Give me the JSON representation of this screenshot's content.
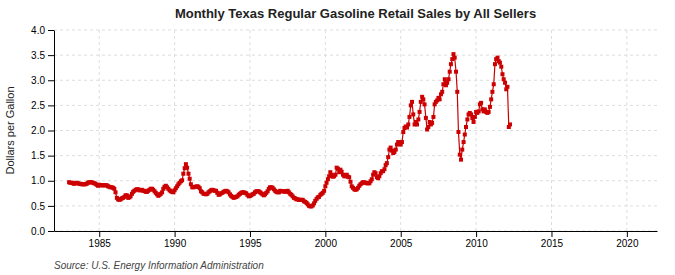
{
  "chart_data": {
    "type": "line",
    "title": "Monthly Texas Regular Gasoline Retail Sales by All Sellers",
    "y_label": "Dollars per Gallon",
    "annotations": [
      "Source: U.S. Energy Information Administration"
    ],
    "color": "#cc0000",
    "marker": "square",
    "grid": true,
    "xlim": [
      1982,
      2022
    ],
    "ylim": [
      0.0,
      4.0
    ],
    "xticks": [
      1985,
      1990,
      1995,
      2000,
      2005,
      2010,
      2015,
      2020
    ],
    "yticks": [
      {
        "value": 0.0,
        "label": "0.0"
      },
      0.5,
      {
        "value": 1.0,
        "label": "1.0"
      },
      1.5,
      {
        "value": 2.0,
        "label": "2.0"
      },
      2.5,
      {
        "value": 3.0,
        "label": "3.0"
      },
      3.5,
      {
        "value": 4.0,
        "label": "4.0"
      }
    ],
    "x": [
      1983.0,
      1983.08,
      1983.17,
      1983.25,
      1983.33,
      1983.42,
      1983.5,
      1983.58,
      1983.67,
      1983.75,
      1983.83,
      1983.92,
      1984.0,
      1984.08,
      1984.17,
      1984.25,
      1984.33,
      1984.42,
      1984.5,
      1984.58,
      1984.67,
      1984.75,
      1984.83,
      1984.92,
      1985.0,
      1985.08,
      1985.17,
      1985.25,
      1985.33,
      1985.42,
      1985.5,
      1985.58,
      1985.67,
      1985.75,
      1985.83,
      1985.92,
      1986.0,
      1986.08,
      1986.17,
      1986.25,
      1986.33,
      1986.42,
      1986.5,
      1986.58,
      1986.67,
      1986.75,
      1986.83,
      1986.92,
      1987.0,
      1987.08,
      1987.17,
      1987.25,
      1987.33,
      1987.42,
      1987.5,
      1987.58,
      1987.67,
      1987.75,
      1987.83,
      1987.92,
      1988.0,
      1988.08,
      1988.17,
      1988.25,
      1988.33,
      1988.42,
      1988.5,
      1988.58,
      1988.67,
      1988.75,
      1988.83,
      1988.92,
      1989.0,
      1989.08,
      1989.17,
      1989.25,
      1989.33,
      1989.42,
      1989.5,
      1989.58,
      1989.67,
      1989.75,
      1989.83,
      1989.92,
      1990.0,
      1990.08,
      1990.17,
      1990.25,
      1990.33,
      1990.42,
      1990.5,
      1990.58,
      1990.67,
      1990.75,
      1990.83,
      1990.92,
      1991.0,
      1991.08,
      1991.17,
      1991.25,
      1991.33,
      1991.42,
      1991.5,
      1991.58,
      1991.67,
      1991.75,
      1991.83,
      1991.92,
      1992.0,
      1992.08,
      1992.17,
      1992.25,
      1992.33,
      1992.42,
      1992.5,
      1992.58,
      1992.67,
      1992.75,
      1992.83,
      1992.92,
      1993.0,
      1993.08,
      1993.17,
      1993.25,
      1993.33,
      1993.42,
      1993.5,
      1993.58,
      1993.67,
      1993.75,
      1993.83,
      1993.92,
      1994.0,
      1994.08,
      1994.17,
      1994.25,
      1994.33,
      1994.42,
      1994.5,
      1994.58,
      1994.67,
      1994.75,
      1994.83,
      1994.92,
      1995.0,
      1995.08,
      1995.17,
      1995.25,
      1995.33,
      1995.42,
      1995.5,
      1995.58,
      1995.67,
      1995.75,
      1995.83,
      1995.92,
      1996.0,
      1996.08,
      1996.17,
      1996.25,
      1996.33,
      1996.42,
      1996.5,
      1996.58,
      1996.67,
      1996.75,
      1996.83,
      1996.92,
      1997.0,
      1997.08,
      1997.17,
      1997.25,
      1997.33,
      1997.42,
      1997.5,
      1997.58,
      1997.67,
      1997.75,
      1997.83,
      1997.92,
      1998.0,
      1998.08,
      1998.17,
      1998.25,
      1998.33,
      1998.42,
      1998.5,
      1998.58,
      1998.67,
      1998.75,
      1998.83,
      1998.92,
      1999.0,
      1999.08,
      1999.17,
      1999.25,
      1999.33,
      1999.42,
      1999.5,
      1999.58,
      1999.67,
      1999.75,
      1999.83,
      1999.92,
      2000.0,
      2000.08,
      2000.17,
      2000.25,
      2000.33,
      2000.42,
      2000.5,
      2000.58,
      2000.67,
      2000.75,
      2000.83,
      2000.92,
      2001.0,
      2001.08,
      2001.17,
      2001.25,
      2001.33,
      2001.42,
      2001.5,
      2001.58,
      2001.67,
      2001.75,
      2001.83,
      2001.92,
      2002.0,
      2002.08,
      2002.17,
      2002.25,
      2002.33,
      2002.42,
      2002.5,
      2002.58,
      2002.67,
      2002.75,
      2002.83,
      2002.92,
      2003.0,
      2003.08,
      2003.17,
      2003.25,
      2003.33,
      2003.42,
      2003.5,
      2003.58,
      2003.67,
      2003.75,
      2003.83,
      2003.92,
      2004.0,
      2004.08,
      2004.17,
      2004.25,
      2004.33,
      2004.42,
      2004.5,
      2004.58,
      2004.67,
      2004.75,
      2004.83,
      2004.92,
      2005.0,
      2005.08,
      2005.17,
      2005.25,
      2005.33,
      2005.42,
      2005.5,
      2005.58,
      2005.67,
      2005.75,
      2005.83,
      2005.92,
      2006.0,
      2006.08,
      2006.17,
      2006.25,
      2006.33,
      2006.42,
      2006.5,
      2006.58,
      2006.67,
      2006.75,
      2006.83,
      2006.92,
      2007.0,
      2007.08,
      2007.17,
      2007.25,
      2007.33,
      2007.42,
      2007.5,
      2007.58,
      2007.67,
      2007.75,
      2007.83,
      2007.92,
      2008.0,
      2008.08,
      2008.17,
      2008.25,
      2008.33,
      2008.42,
      2008.5,
      2008.58,
      2008.67,
      2008.75,
      2008.83,
      2008.92,
      2009.0,
      2009.08,
      2009.17,
      2009.25,
      2009.33,
      2009.42,
      2009.5,
      2009.58,
      2009.67,
      2009.75,
      2009.83,
      2009.92,
      2010.0,
      2010.08,
      2010.17,
      2010.25,
      2010.33,
      2010.42,
      2010.5,
      2010.58,
      2010.67,
      2010.75,
      2010.83,
      2010.92,
      2011.0,
      2011.08,
      2011.17,
      2011.25,
      2011.33,
      2011.42,
      2011.5,
      2011.58,
      2011.67,
      2011.75,
      2011.83,
      2011.92,
      2012.0,
      2012.08,
      2012.17,
      2012.25
    ],
    "values": [
      0.97,
      0.96,
      0.96,
      0.95,
      0.94,
      0.95,
      0.96,
      0.95,
      0.94,
      0.94,
      0.93,
      0.93,
      0.93,
      0.93,
      0.94,
      0.96,
      0.97,
      0.97,
      0.97,
      0.96,
      0.95,
      0.94,
      0.92,
      0.9,
      0.92,
      0.91,
      0.91,
      0.91,
      0.91,
      0.91,
      0.91,
      0.89,
      0.88,
      0.87,
      0.87,
      0.86,
      0.84,
      0.77,
      0.66,
      0.63,
      0.62,
      0.63,
      0.65,
      0.66,
      0.68,
      0.71,
      0.71,
      0.66,
      0.67,
      0.69,
      0.74,
      0.78,
      0.8,
      0.82,
      0.83,
      0.83,
      0.81,
      0.81,
      0.82,
      0.8,
      0.8,
      0.78,
      0.78,
      0.8,
      0.82,
      0.84,
      0.84,
      0.82,
      0.79,
      0.76,
      0.73,
      0.7,
      0.72,
      0.74,
      0.77,
      0.84,
      0.88,
      0.9,
      0.87,
      0.84,
      0.81,
      0.79,
      0.78,
      0.77,
      0.81,
      0.85,
      0.89,
      0.93,
      0.96,
      0.99,
      1.01,
      1.14,
      1.25,
      1.33,
      1.26,
      1.14,
      1.04,
      0.93,
      0.87,
      0.87,
      0.88,
      0.88,
      0.89,
      0.88,
      0.85,
      0.79,
      0.77,
      0.74,
      0.74,
      0.73,
      0.74,
      0.77,
      0.79,
      0.81,
      0.82,
      0.81,
      0.8,
      0.8,
      0.76,
      0.72,
      0.73,
      0.75,
      0.76,
      0.78,
      0.79,
      0.8,
      0.79,
      0.77,
      0.73,
      0.7,
      0.68,
      0.66,
      0.67,
      0.68,
      0.69,
      0.72,
      0.74,
      0.76,
      0.77,
      0.77,
      0.76,
      0.75,
      0.72,
      0.69,
      0.7,
      0.71,
      0.73,
      0.74,
      0.77,
      0.79,
      0.79,
      0.79,
      0.77,
      0.75,
      0.73,
      0.71,
      0.73,
      0.76,
      0.79,
      0.84,
      0.87,
      0.87,
      0.86,
      0.83,
      0.8,
      0.78,
      0.77,
      0.77,
      0.8,
      0.79,
      0.79,
      0.79,
      0.78,
      0.79,
      0.8,
      0.77,
      0.74,
      0.72,
      0.69,
      0.66,
      0.65,
      0.63,
      0.63,
      0.62,
      0.62,
      0.62,
      0.62,
      0.59,
      0.58,
      0.56,
      0.53,
      0.5,
      0.49,
      0.49,
      0.51,
      0.55,
      0.6,
      0.64,
      0.67,
      0.68,
      0.72,
      0.74,
      0.76,
      0.8,
      0.89,
      0.96,
      1.03,
      1.09,
      1.17,
      1.12,
      1.08,
      1.09,
      1.12,
      1.26,
      1.24,
      1.17,
      1.22,
      1.18,
      1.12,
      1.09,
      1.09,
      1.12,
      1.08,
      1.07,
      0.98,
      0.89,
      0.86,
      0.83,
      0.82,
      0.83,
      0.86,
      0.9,
      0.93,
      0.95,
      0.97,
      0.97,
      0.96,
      0.95,
      0.95,
      0.95,
      0.99,
      1.03,
      1.12,
      1.17,
      1.15,
      1.07,
      1.05,
      1.09,
      1.15,
      1.19,
      1.19,
      1.23,
      1.31,
      1.35,
      1.47,
      1.62,
      1.66,
      1.6,
      1.55,
      1.57,
      1.62,
      1.72,
      1.77,
      1.75,
      1.72,
      1.77,
      1.97,
      2.05,
      2.08,
      2.06,
      2.12,
      2.27,
      2.5,
      2.57,
      2.32,
      2.12,
      2.17,
      2.12,
      2.22,
      2.37,
      2.57,
      2.67,
      2.62,
      2.52,
      2.25,
      2.02,
      2.07,
      2.17,
      2.12,
      2.15,
      2.27,
      2.52,
      2.57,
      2.6,
      2.65,
      2.62,
      2.72,
      2.77,
      2.92,
      3.02,
      2.9,
      2.95,
      3.02,
      3.17,
      3.32,
      3.42,
      3.52,
      3.45,
      3.17,
      2.77,
      1.97,
      1.52,
      1.42,
      1.62,
      1.77,
      1.92,
      2.07,
      2.22,
      2.32,
      2.35,
      2.32,
      2.25,
      2.17,
      2.27,
      2.37,
      2.35,
      2.38,
      2.52,
      2.55,
      2.42,
      2.38,
      2.42,
      2.37,
      2.35,
      2.37,
      2.47,
      2.62,
      2.77,
      2.92,
      3.32,
      3.42,
      3.45,
      3.38,
      3.35,
      3.27,
      3.12,
      3.02,
      2.95,
      2.82,
      2.87,
      2.07,
      2.12
    ]
  }
}
